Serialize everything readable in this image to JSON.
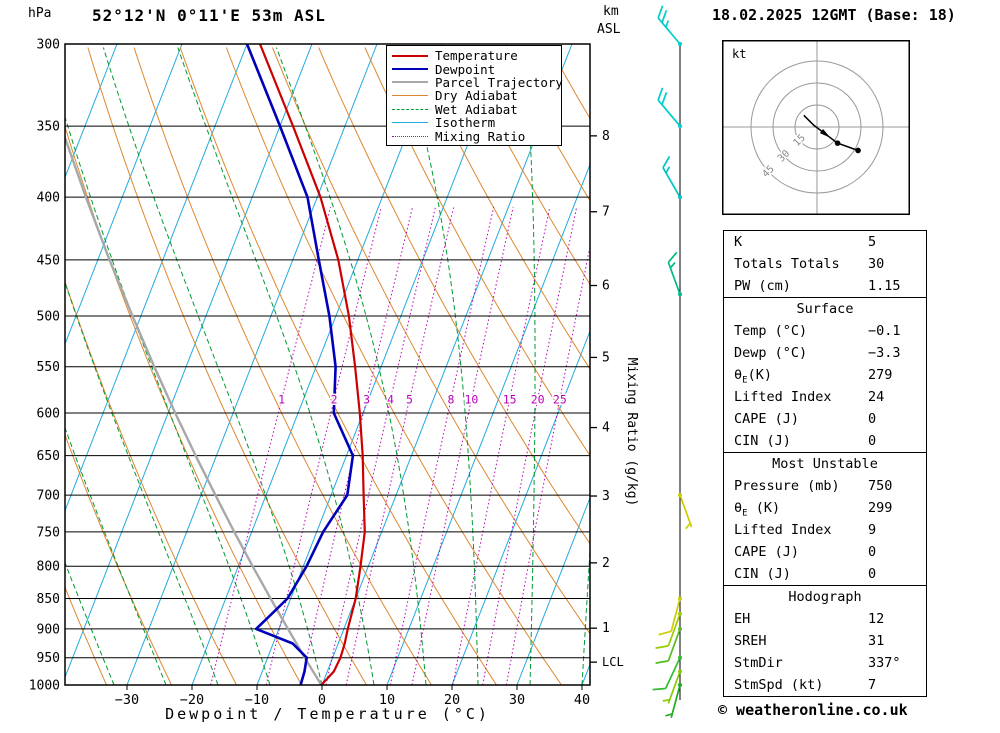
{
  "title": "52°12'N 0°11'E 53m ASL",
  "date_title": "18.02.2025 12GMT (Base: 18)",
  "copyright": "© weatheronline.co.uk",
  "axes": {
    "pressure_unit": "hPa",
    "km_unit": "km",
    "asl": "ASL",
    "x_label": "Dewpoint / Temperature (°C)",
    "mixing_ratio_label": "Mixing Ratio (g/kg)",
    "lcl_label": "LCL",
    "pressure_ticks": [
      300,
      350,
      400,
      450,
      500,
      550,
      600,
      650,
      700,
      750,
      800,
      850,
      900,
      950,
      1000
    ],
    "temp_ticks": [
      -30,
      -20,
      -10,
      0,
      10,
      20,
      30,
      40
    ],
    "km_ticks": [
      8,
      7,
      6,
      5,
      4,
      3,
      2,
      1
    ]
  },
  "legend": [
    {
      "label": "Temperature",
      "color": "#cc0000",
      "style": "solid",
      "weight": 2.6
    },
    {
      "label": "Dewpoint",
      "color": "#0000bb",
      "style": "solid",
      "weight": 2.6
    },
    {
      "label": "Parcel Trajectory",
      "color": "#a8a8a8",
      "style": "solid",
      "weight": 2.6
    },
    {
      "label": "Dry Adiabat",
      "color": "#dd8830",
      "style": "solid",
      "weight": 1.4
    },
    {
      "label": "Wet Adiabat",
      "color": "#009933",
      "style": "dashed",
      "weight": 1.4
    },
    {
      "label": "Isotherm",
      "color": "#22aadd",
      "style": "solid",
      "weight": 1.4
    },
    {
      "label": "Mixing Ratio",
      "color": "#bb00bb",
      "style": "dotted",
      "weight": 1.4
    }
  ],
  "chart_data": {
    "type": "line",
    "title": "Skew-T log-P sounding",
    "xlabel": "Dewpoint / Temperature (°C)",
    "ylabel": "Pressure (hPa)",
    "x_range": [
      -40,
      40
    ],
    "y_range": [
      300,
      1000
    ],
    "y_scale": "log",
    "lcl_pressure": 958,
    "mixing_ratio_lines": [
      1,
      2,
      3,
      4,
      5,
      8,
      10,
      15,
      20,
      25
    ],
    "series": [
      {
        "name": "Temperature",
        "color": "#cc0000",
        "points": [
          [
            1000,
            -0.1
          ],
          [
            975,
            1.0
          ],
          [
            950,
            1.2
          ],
          [
            925,
            1.0
          ],
          [
            900,
            0.6
          ],
          [
            850,
            0.0
          ],
          [
            800,
            -1.2
          ],
          [
            750,
            -2.6
          ],
          [
            700,
            -5.0
          ],
          [
            650,
            -7.5
          ],
          [
            600,
            -10.5
          ],
          [
            550,
            -14.0
          ],
          [
            500,
            -18.0
          ],
          [
            450,
            -23.0
          ],
          [
            400,
            -29.5
          ],
          [
            350,
            -38.0
          ],
          [
            300,
            -48.0
          ]
        ]
      },
      {
        "name": "Dewpoint",
        "color": "#0000bb",
        "points": [
          [
            1000,
            -3.3
          ],
          [
            975,
            -3.5
          ],
          [
            950,
            -4.0
          ],
          [
            925,
            -7.0
          ],
          [
            900,
            -13.5
          ],
          [
            875,
            -12.0
          ],
          [
            850,
            -10.5
          ],
          [
            800,
            -9.5
          ],
          [
            750,
            -9.0
          ],
          [
            700,
            -7.5
          ],
          [
            650,
            -9.0
          ],
          [
            600,
            -14.5
          ],
          [
            550,
            -17.0
          ],
          [
            500,
            -21.0
          ],
          [
            450,
            -26.0
          ],
          [
            400,
            -31.5
          ],
          [
            350,
            -40.0
          ],
          [
            300,
            -50.0
          ]
        ]
      },
      {
        "name": "Parcel Trajectory",
        "color": "#a8a8a8",
        "points": [
          [
            1000,
            -0.1
          ],
          [
            950,
            -4.3
          ],
          [
            900,
            -8.6
          ],
          [
            850,
            -13.1
          ],
          [
            800,
            -17.8
          ],
          [
            750,
            -22.7
          ],
          [
            700,
            -27.8
          ],
          [
            650,
            -33.2
          ],
          [
            600,
            -38.9
          ],
          [
            550,
            -44.9
          ],
          [
            500,
            -51.3
          ],
          [
            450,
            -58.2
          ],
          [
            400,
            -65.6
          ],
          [
            350,
            -73.7
          ],
          [
            300,
            -82.6
          ]
        ]
      }
    ]
  },
  "wind_barbs": [
    {
      "pressure": 300,
      "speed_kt": 25,
      "dir_deg": 320,
      "color": "#00cccc"
    },
    {
      "pressure": 350,
      "speed_kt": 20,
      "dir_deg": 320,
      "color": "#00cccc"
    },
    {
      "pressure": 400,
      "speed_kt": 15,
      "dir_deg": 330,
      "color": "#00c4c4"
    },
    {
      "pressure": 480,
      "speed_kt": 15,
      "dir_deg": 340,
      "color": "#00bb88"
    },
    {
      "pressure": 700,
      "speed_kt": 5,
      "dir_deg": 160,
      "color": "#cccc00"
    },
    {
      "pressure": 850,
      "speed_kt": 10,
      "dir_deg": 195,
      "color": "#cccc00"
    },
    {
      "pressure": 875,
      "speed_kt": 10,
      "dir_deg": 200,
      "color": "#99cc00"
    },
    {
      "pressure": 900,
      "speed_kt": 10,
      "dir_deg": 200,
      "color": "#55bb22"
    },
    {
      "pressure": 950,
      "speed_kt": 10,
      "dir_deg": 205,
      "color": "#33bb33"
    },
    {
      "pressure": 975,
      "speed_kt": 7,
      "dir_deg": 200,
      "color": "#88cc00"
    },
    {
      "pressure": 1000,
      "speed_kt": 5,
      "dir_deg": 195,
      "color": "#22aa22"
    }
  ],
  "hodograph": {
    "unit": "kt",
    "rings_kt": [
      15,
      30,
      45
    ],
    "trace_uv_kt": [
      [
        -9,
        8
      ],
      [
        -2,
        1
      ],
      [
        14,
        -11
      ],
      [
        28,
        -16
      ]
    ],
    "dot_indices": [
      2,
      3
    ]
  },
  "table": {
    "sections": [
      {
        "header": "",
        "rows": [
          [
            "K",
            "5"
          ],
          [
            "Totals Totals",
            "30"
          ],
          [
            "PW (cm)",
            "1.15"
          ]
        ]
      },
      {
        "header": "Surface",
        "rows": [
          [
            "Temp (°C)",
            "-0.1"
          ],
          [
            "Dewp (°C)",
            "-3.3"
          ],
          [
            "θE(K)",
            "279"
          ],
          [
            "Lifted Index",
            "24"
          ],
          [
            "CAPE (J)",
            "0"
          ],
          [
            "CIN (J)",
            "0"
          ]
        ]
      },
      {
        "header": "Most Unstable",
        "rows": [
          [
            "Pressure (mb)",
            "750"
          ],
          [
            "θE (K)",
            "299"
          ],
          [
            "Lifted Index",
            "9"
          ],
          [
            "CAPE (J)",
            "0"
          ],
          [
            "CIN (J)",
            "0"
          ]
        ]
      },
      {
        "header": "Hodograph",
        "rows": [
          [
            "EH",
            "12"
          ],
          [
            "SREH",
            "31"
          ],
          [
            "StmDir",
            "337°"
          ],
          [
            "StmSpd (kt)",
            "7"
          ]
        ]
      }
    ]
  }
}
